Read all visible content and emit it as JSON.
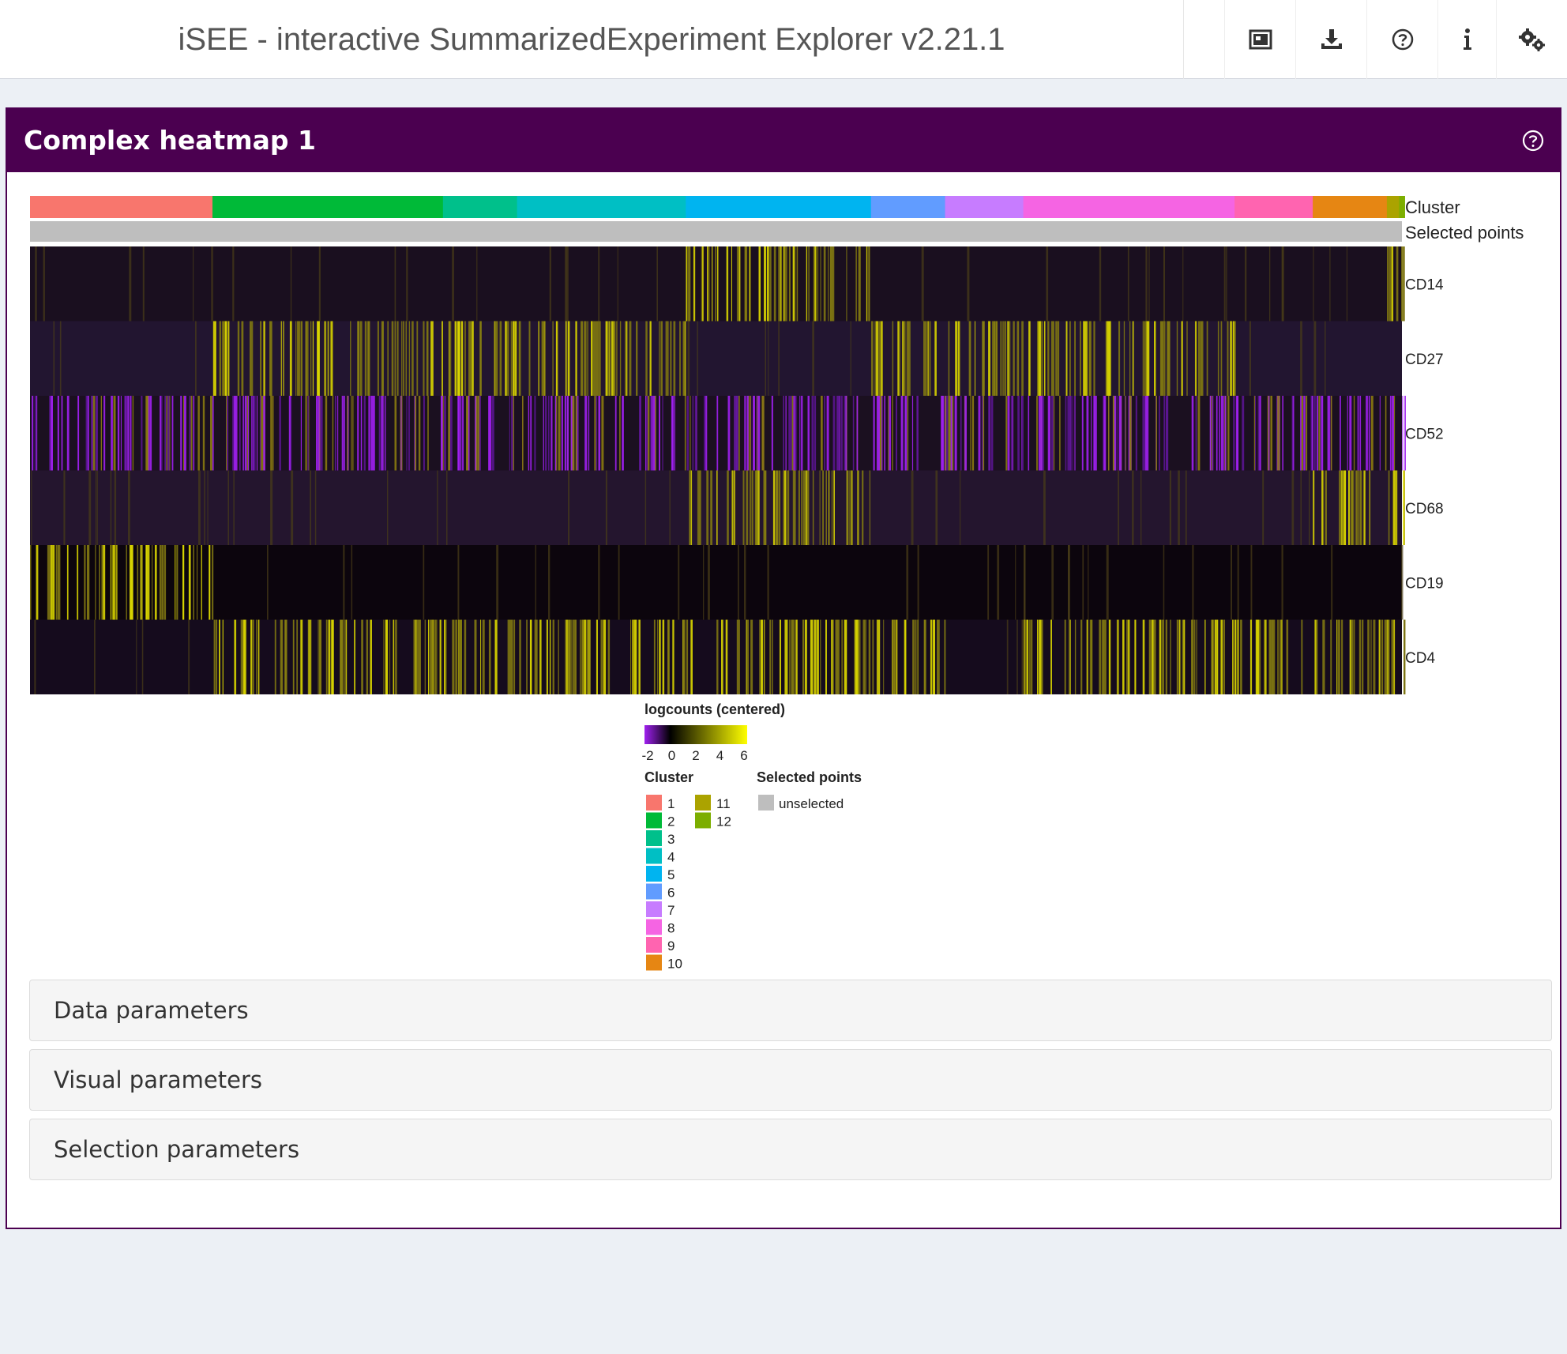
{
  "app": {
    "title": "iSEE - interactive SummarizedExperiment Explorer v2.21.1"
  },
  "navbar": {
    "icons": [
      "export-image-icon",
      "download-icon",
      "question-circle-icon",
      "info-icon",
      "cogs-icon"
    ]
  },
  "panel": {
    "title": "Complex heatmap 1",
    "accordions": [
      "Data parameters",
      "Visual parameters",
      "Selection parameters"
    ]
  },
  "chart_data": {
    "type": "heatmap",
    "annotation_rows": [
      "Cluster",
      "Selected points"
    ],
    "genes": [
      "CD14",
      "CD27",
      "CD52",
      "CD68",
      "CD19",
      "CD4"
    ],
    "cluster_blocks": [
      {
        "cluster": "1",
        "fraction": 0.133
      },
      {
        "cluster": "2",
        "fraction": 0.168
      },
      {
        "cluster": "3",
        "fraction": 0.054
      },
      {
        "cluster": "4",
        "fraction": 0.123
      },
      {
        "cluster": "5",
        "fraction": 0.135
      },
      {
        "cluster": "6",
        "fraction": 0.054
      },
      {
        "cluster": "7",
        "fraction": 0.057
      },
      {
        "cluster": "8",
        "fraction": 0.154
      },
      {
        "cluster": "9",
        "fraction": 0.057
      },
      {
        "cluster": "10",
        "fraction": 0.054
      },
      {
        "cluster": "11",
        "fraction": 0.009
      },
      {
        "cluster": "12",
        "fraction": 0.004
      }
    ],
    "gene_high_clusters": {
      "CD14": [
        "5",
        "11",
        "12"
      ],
      "CD27": [
        "2",
        "3",
        "4",
        "6",
        "7",
        "8"
      ],
      "CD52": [
        "1",
        "2",
        "3",
        "4",
        "5",
        "6",
        "7",
        "8",
        "9",
        "10",
        "11",
        "12"
      ],
      "CD68": [
        "5",
        "10",
        "11",
        "12"
      ],
      "CD19": [
        "1"
      ],
      "CD4": [
        "2",
        "3",
        "4",
        "5",
        "6",
        "8",
        "9",
        "10",
        "11",
        "12"
      ]
    },
    "color_scale": {
      "title": "logcounts (centered)",
      "ticks": [
        "-2",
        "0",
        "2",
        "4",
        "6"
      ],
      "colors": [
        "#a020f0",
        "#000000",
        "#ffff00"
      ]
    },
    "cluster_legend": {
      "title": "Cluster",
      "labels": [
        "1",
        "2",
        "3",
        "4",
        "5",
        "6",
        "7",
        "8",
        "9",
        "10",
        "11",
        "12"
      ],
      "colors": [
        "#F8766D",
        "#00BA38",
        "#00C08B",
        "#00BFC4",
        "#00B4F0",
        "#619CFF",
        "#C77CFF",
        "#F564E3",
        "#FF64B0",
        "#E68613",
        "#ABA300",
        "#7CAE00"
      ]
    },
    "selected_legend": {
      "title": "Selected points",
      "labels": [
        "unselected"
      ],
      "colors": [
        "#BEBEBE"
      ]
    }
  }
}
